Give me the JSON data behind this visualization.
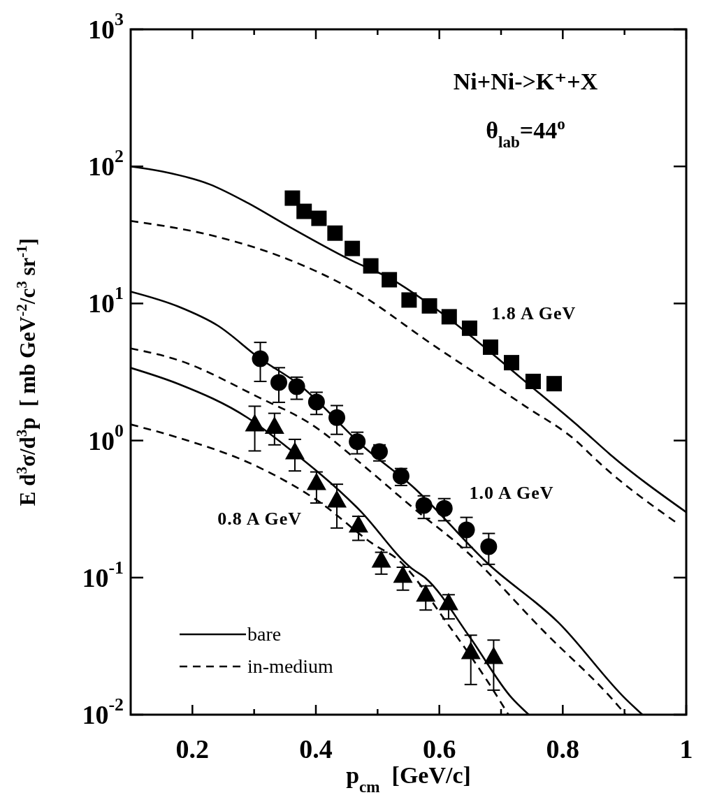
{
  "chart_data": {
    "type": "line",
    "title": "Ni+Ni->K⁺+X",
    "subtitle": "θ$_{lab}$=44$^{o}$",
    "xlabel": "p$_{cm}$  [GeV/c]",
    "ylabel": "E d$^{3}$σ/d$^{3}$p  [ mb GeV$^{-2}$/c$^{3}$ sr$^{-1}$]",
    "log": "y",
    "xlim": [
      0.1,
      1.0
    ],
    "ylim": [
      0.01,
      1000
    ],
    "xticks": [
      0.2,
      {
        "value": 0.3,
        "label": null
      },
      0.4,
      {
        "value": 0.5,
        "label": null
      },
      0.6,
      {
        "value": 0.7,
        "label": null
      },
      0.8,
      {
        "value": 0.9,
        "label": null
      },
      1.0
    ],
    "yticks": [
      {
        "value": 0.01,
        "label": "10$^{-2}$"
      },
      {
        "value": 0.1,
        "label": "10$^{-1}$"
      },
      {
        "value": 1,
        "label": "10$^{0}$"
      },
      {
        "value": 10,
        "label": "10$^{1}$"
      },
      {
        "value": 100,
        "label": "10$^{2}$"
      },
      {
        "value": 1000,
        "label": "10$^{3}$"
      }
    ],
    "legend": "bottom left",
    "series": [
      {
        "name": "bare",
        "color": "#000000",
        "line_style": "solid",
        "x": [
          0.1,
          0.15,
          0.228,
          0.29,
          0.349,
          0.454,
          0.524,
          0.595,
          0.745,
          0.83,
          0.877,
          1.0
        ],
        "values": [
          100,
          92,
          74,
          54,
          38,
          21,
          14.9,
          9.1,
          2.56,
          1.22,
          0.79,
          0.3
        ]
      },
      {
        "name": "in-medium",
        "color": "#000000",
        "line_style": "dashed",
        "x": [
          0.1,
          0.236,
          0.355,
          0.454,
          0.595,
          0.736,
          0.83,
          0.845,
          0.985
        ],
        "values": [
          40,
          31,
          21,
          13,
          4.8,
          1.82,
          0.92,
          0.79,
          0.25
        ]
      },
      {
        "color": "#000000",
        "line_style": "solid",
        "x": [
          0.1,
          0.177,
          0.241,
          0.31,
          0.371,
          0.48,
          0.555,
          0.68,
          0.793,
          0.902,
          0.929
        ],
        "values": [
          12.2,
          9.5,
          6.9,
          3.95,
          2.6,
          0.88,
          0.47,
          0.125,
          0.047,
          0.013,
          0.01
        ]
      },
      {
        "color": "#000000",
        "line_style": "dashed",
        "x": [
          0.1,
          0.177,
          0.307,
          0.393,
          0.48,
          0.555,
          0.642,
          0.773,
          0.88,
          0.902
        ],
        "values": [
          4.7,
          3.86,
          2.07,
          1.31,
          0.64,
          0.33,
          0.158,
          0.039,
          0.013,
          0.01
        ]
      },
      {
        "color": "#000000",
        "line_style": "solid",
        "x": [
          0.1,
          0.177,
          0.289,
          0.35,
          0.471,
          0.555,
          0.578,
          0.649,
          0.717,
          0.745
        ],
        "values": [
          3.39,
          2.59,
          1.47,
          0.92,
          0.31,
          0.117,
          0.099,
          0.037,
          0.0133,
          0.01
        ]
      },
      {
        "color": "#000000",
        "line_style": "dashed",
        "x": [
          0.1,
          0.177,
          0.307,
          0.406,
          0.491,
          0.535,
          0.612,
          0.68,
          0.712
        ],
        "values": [
          1.31,
          1.05,
          0.64,
          0.356,
          0.178,
          0.133,
          0.047,
          0.017,
          0.01
        ]
      },
      {
        "type": "scatter",
        "color": "#000000",
        "marker": "square",
        "x": [
          0.362,
          0.381,
          0.405,
          0.431,
          0.459,
          0.489,
          0.519,
          0.551,
          0.584,
          0.616,
          0.649,
          0.683,
          0.717,
          0.752,
          0.786
        ],
        "values": [
          58.7,
          47,
          41.8,
          32.6,
          25.2,
          18.8,
          14.9,
          10.6,
          9.6,
          8.0,
          6.6,
          4.8,
          3.7,
          2.7,
          2.6
        ]
      },
      {
        "type": "scatter",
        "color": "#000000",
        "marker": "circle",
        "x": [
          0.31,
          0.34,
          0.369,
          0.401,
          0.434,
          0.467,
          0.503,
          0.538,
          0.575,
          0.608,
          0.644,
          0.68
        ],
        "values": [
          3.95,
          2.65,
          2.47,
          1.91,
          1.47,
          0.98,
          0.83,
          0.55,
          0.336,
          0.32,
          0.223,
          0.168
        ],
        "errors": [
          [
            2.7,
            5.2
          ],
          [
            1.9,
            3.4
          ],
          [
            2.0,
            2.9
          ],
          [
            1.55,
            2.25
          ],
          [
            1.11,
            1.8
          ],
          [
            0.8,
            1.15
          ],
          [
            0.71,
            0.93
          ],
          [
            0.47,
            0.625
          ],
          [
            0.27,
            0.395
          ],
          [
            0.26,
            0.377
          ],
          [
            0.166,
            0.275
          ],
          [
            0.125,
            0.21
          ]
        ]
      },
      {
        "type": "scatter",
        "color": "#000000",
        "marker": "triangle",
        "x": [
          0.301,
          0.333,
          0.366,
          0.401,
          0.434,
          0.469,
          0.506,
          0.541,
          0.578,
          0.615,
          0.651,
          0.688
        ],
        "values": [
          1.31,
          1.26,
          0.82,
          0.49,
          0.365,
          0.24,
          0.133,
          0.103,
          0.075,
          0.065,
          0.0286,
          0.0263
        ],
        "errors": [
          [
            0.84,
            1.78
          ],
          [
            0.93,
            1.58
          ],
          [
            0.6,
            1.02
          ],
          [
            0.35,
            0.59
          ],
          [
            0.23,
            0.48
          ],
          [
            0.187,
            0.28
          ],
          [
            0.106,
            0.153
          ],
          [
            0.081,
            0.119
          ],
          [
            0.058,
            0.087
          ],
          [
            0.05,
            0.075
          ],
          [
            0.0166,
            0.038
          ],
          [
            0.0151,
            0.035
          ]
        ]
      }
    ],
    "annotations": [
      "1.8 A GeV",
      "1.0 A GeV",
      "0.8 A GeV"
    ]
  }
}
